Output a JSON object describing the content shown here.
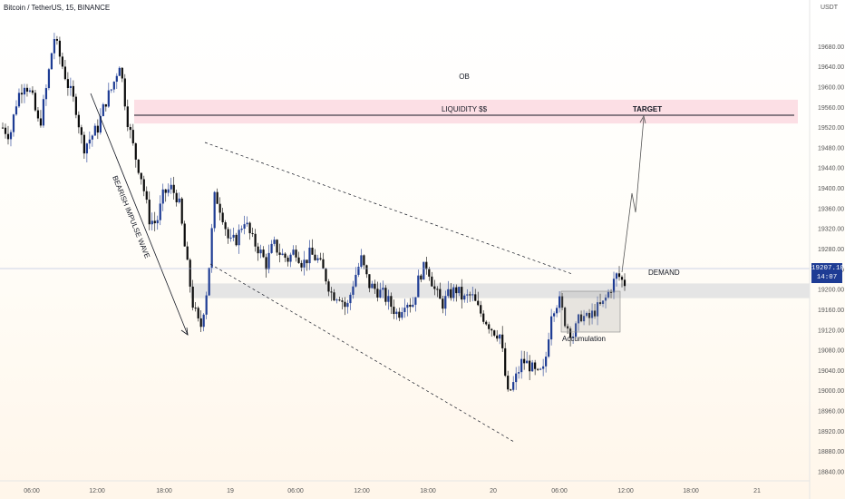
{
  "header": {
    "symbol_title": "Bitcoin / TetherUS, 15, BINANCE",
    "price_axis_unit": "USDT"
  },
  "last_price": {
    "value": "19207.10",
    "countdown": "14:07"
  },
  "colors": {
    "candle_up": "#1e3c94",
    "candle_down": "#0b0b0b",
    "ob_zone": "#fcd9e0",
    "demand_zone": "#e0e0e2",
    "badge": "#1e3c94"
  },
  "chart_data": {
    "type": "candlestick",
    "title": "Bitcoin / TetherUS, 15, BINANCE",
    "y_unit": "USDT",
    "ylim": [
      18840,
      19720
    ],
    "y_ticks": [
      "19680.00",
      "19640.00",
      "19600.00",
      "19560.00",
      "19520.00",
      "19480.00",
      "19440.00",
      "19400.00",
      "19360.00",
      "19320.00",
      "19280.00",
      "19240.00",
      "19200.00",
      "19160.00",
      "19120.00",
      "19080.00",
      "19040.00",
      "19000.00",
      "18960.00",
      "18920.00",
      "18880.00",
      "18840.00"
    ],
    "x_ticks": [
      "06:00",
      "12:00",
      "18:00",
      "19",
      "06:00",
      "12:00",
      "18:00",
      "20",
      "06:00",
      "12:00",
      "18:00",
      "21"
    ],
    "zones": [
      {
        "label": "OB",
        "from": 19528,
        "to": 19575
      },
      {
        "label": "DEMAND",
        "from": 19183,
        "to": 19212
      }
    ],
    "levels": [
      {
        "label": "LIQUIDITY $$",
        "price": 19480
      }
    ],
    "annotations": [
      "BEARISH IMPULSE WAVE",
      "TARGET",
      "Accumulation"
    ],
    "path_points": [
      19520,
      19505,
      19580,
      19610,
      19580,
      19520,
      19600,
      19700,
      19650,
      19600,
      19560,
      19480,
      19500,
      19520,
      19570,
      19600,
      19650,
      19540,
      19470,
      19420,
      19340,
      19330,
      19390,
      19400,
      19380,
      19270,
      19170,
      19120,
      19210,
      19390,
      19350,
      19290,
      19300,
      19340,
      19300,
      19280,
      19250,
      19290,
      19270,
      19260,
      19280,
      19250,
      19270,
      19260,
      19230,
      19190,
      19190,
      19160,
      19220,
      19260,
      19210,
      19200,
      19190,
      19170,
      19150,
      19180,
      19170,
      19230,
      19250,
      19200,
      19170,
      19190,
      19200,
      19180,
      19190,
      19160,
      19140,
      19120,
      19110,
      18990,
      19020,
      19060,
      19050,
      19030,
      19040,
      19160,
      19180,
      19130,
      19110,
      19150,
      19140,
      19160,
      19170,
      19200,
      19230,
      19210
    ]
  }
}
